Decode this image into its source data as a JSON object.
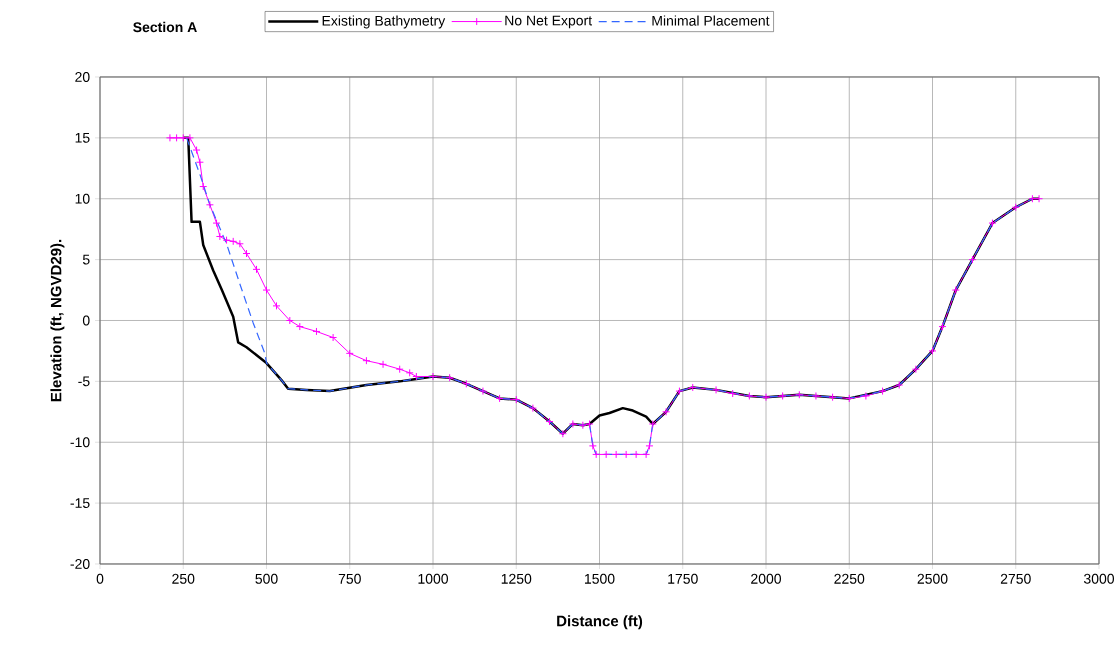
{
  "chart_data": {
    "type": "line",
    "title": "Section A",
    "xlabel": "Distance (ft)",
    "ylabel": "Elevation (ft, NGVD29).",
    "xlim": [
      0,
      3000
    ],
    "ylim": [
      -20,
      20
    ],
    "xticks": [
      0,
      250,
      500,
      750,
      1000,
      1250,
      1500,
      1750,
      2000,
      2250,
      2500,
      2750,
      3000
    ],
    "yticks": [
      -20,
      -15,
      -10,
      -5,
      0,
      5,
      10,
      15,
      20
    ],
    "grid": true,
    "legend": "top",
    "series": [
      {
        "name": "Existing Bathymetry",
        "color": "#000000",
        "marker": "none",
        "line_style": "solid",
        "x": [
          250,
          265,
          275,
          300,
          310,
          340,
          366,
          400,
          415,
          440,
          500,
          545,
          565,
          620,
          690,
          800,
          900,
          950,
          1000,
          1050,
          1100,
          1150,
          1200,
          1250,
          1300,
          1350,
          1390,
          1420,
          1450,
          1470,
          1500,
          1530,
          1570,
          1600,
          1640,
          1660,
          1700,
          1740,
          1780,
          1850,
          1950,
          2000,
          2100,
          2250,
          2350,
          2400,
          2450,
          2500,
          2530,
          2570,
          2620,
          2680,
          2750,
          2800,
          2820
        ],
        "values": [
          15,
          15,
          8.1,
          8.1,
          6.2,
          4.1,
          2.5,
          0.3,
          -1.8,
          -2.2,
          -3.5,
          -4.9,
          -5.6,
          -5.7,
          -5.8,
          -5.3,
          -5.0,
          -4.8,
          -4.6,
          -4.7,
          -5.2,
          -5.8,
          -6.4,
          -6.5,
          -7.2,
          -8.3,
          -9.3,
          -8.5,
          -8.6,
          -8.5,
          -7.8,
          -7.6,
          -7.2,
          -7.4,
          -7.9,
          -8.5,
          -7.5,
          -5.8,
          -5.5,
          -5.7,
          -6.2,
          -6.3,
          -6.1,
          -6.4,
          -5.8,
          -5.3,
          -4.0,
          -2.5,
          -0.5,
          2.5,
          5,
          8,
          9.3,
          10,
          10
        ]
      },
      {
        "name": "No Net Export",
        "color": "#ff00ff",
        "marker": "cross",
        "line_style": "solid",
        "x": [
          210,
          230,
          250,
          270,
          290,
          300,
          310,
          330,
          350,
          360,
          380,
          400,
          420,
          440,
          470,
          500,
          530,
          570,
          600,
          650,
          700,
          750,
          800,
          850,
          900,
          930,
          950,
          1000,
          1050,
          1100,
          1150,
          1200,
          1250,
          1300,
          1350,
          1390,
          1420,
          1450,
          1470,
          1480,
          1490,
          1520,
          1550,
          1580,
          1610,
          1640,
          1650,
          1660,
          1700,
          1740,
          1780,
          1850,
          1900,
          1950,
          2000,
          2050,
          2100,
          2150,
          2200,
          2250,
          2300,
          2350,
          2400,
          2450,
          2500,
          2530,
          2570,
          2620,
          2680,
          2750,
          2800,
          2820
        ],
        "values": [
          15,
          15,
          15,
          15,
          14,
          13,
          11,
          9.5,
          8,
          6.9,
          6.6,
          6.5,
          6.3,
          5.5,
          4.2,
          2.5,
          1.2,
          0,
          -0.5,
          -0.9,
          -1.4,
          -2.7,
          -3.3,
          -3.6,
          -4.0,
          -4.3,
          -4.6,
          -4.6,
          -4.7,
          -5.2,
          -5.8,
          -6.4,
          -6.5,
          -7.2,
          -8.3,
          -9.3,
          -8.5,
          -8.6,
          -8.5,
          -10.3,
          -11,
          -11,
          -11,
          -11,
          -11,
          -11,
          -10.3,
          -8.5,
          -7.5,
          -5.8,
          -5.5,
          -5.7,
          -6.0,
          -6.2,
          -6.3,
          -6.2,
          -6.1,
          -6.2,
          -6.3,
          -6.4,
          -6.2,
          -5.8,
          -5.3,
          -4.0,
          -2.5,
          -0.5,
          2.5,
          5,
          8,
          9.3,
          10,
          10
        ]
      },
      {
        "name": "Minimal Placement",
        "color": "#3366ff",
        "marker": "none",
        "line_style": "dashed",
        "x": [
          260,
          300,
          330,
          380,
          420,
          460,
          495,
          500,
          545,
          565,
          620,
          690,
          800,
          900,
          950,
          1000,
          1050,
          1100,
          1150,
          1200,
          1250,
          1300,
          1350,
          1390,
          1420,
          1450,
          1470,
          1480,
          1490,
          1640,
          1650,
          1660,
          1700,
          1740,
          1780,
          1850,
          1950,
          2000,
          2100,
          2250,
          2350,
          2400,
          2450,
          2500,
          2530,
          2570,
          2620,
          2680,
          2750,
          2800
        ],
        "values": [
          15,
          12,
          9.5,
          6.3,
          3,
          -0.2,
          -2.7,
          -3.5,
          -4.9,
          -5.6,
          -5.7,
          -5.8,
          -5.3,
          -5.0,
          -4.8,
          -4.6,
          -4.7,
          -5.2,
          -5.8,
          -6.4,
          -6.5,
          -7.2,
          -8.3,
          -9.3,
          -8.5,
          -8.6,
          -8.5,
          -10.3,
          -11,
          -11,
          -10.3,
          -8.5,
          -7.5,
          -5.8,
          -5.5,
          -5.7,
          -6.2,
          -6.3,
          -6.1,
          -6.4,
          -5.8,
          -5.3,
          -4.0,
          -2.5,
          -0.5,
          2.5,
          5,
          8,
          9.3,
          10
        ]
      }
    ]
  }
}
